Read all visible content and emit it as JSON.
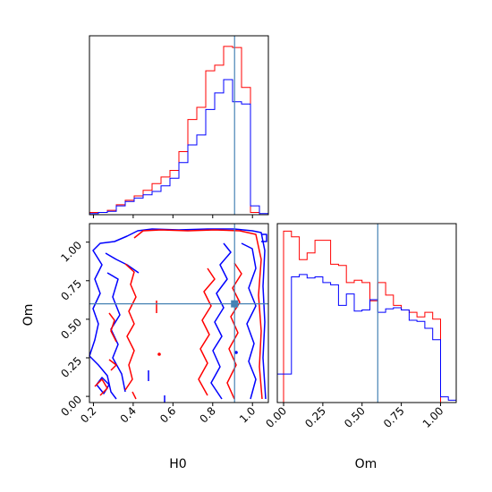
{
  "chart_data": {
    "type": "corner",
    "parameters": [
      "H0",
      "Om"
    ],
    "truth": {
      "H0": 0.91,
      "Om": 0.6
    },
    "colors": {
      "red": "#ff0000",
      "blue": "#0000ff",
      "truth": "#4682b4"
    },
    "panels": {
      "h0_hist": {
        "type": "step-histogram",
        "xlim": [
          0.18,
          1.08
        ],
        "bin_edges": [
          0.18,
          0.225,
          0.27,
          0.315,
          0.36,
          0.405,
          0.45,
          0.495,
          0.54,
          0.585,
          0.63,
          0.675,
          0.72,
          0.765,
          0.81,
          0.855,
          0.9,
          0.945,
          0.99,
          1.035,
          1.08
        ],
        "series": [
          {
            "color": "red",
            "counts": [
              2,
              2,
              4,
              9,
              13,
              17,
              22,
              28,
              34,
              40,
              57,
              86,
              97,
              130,
              135,
              152,
              151,
              115,
              2,
              0
            ]
          },
          {
            "color": "blue",
            "counts": [
              1,
              2,
              3,
              8,
              12,
              15,
              18,
              21,
              26,
              33,
              47,
              63,
              72,
              95,
              110,
              122,
              102,
              100,
              8,
              1
            ]
          }
        ]
      },
      "om_hist": {
        "type": "step-histogram",
        "xlim": [
          -0.04,
          1.1
        ],
        "xticks": [
          "0.00",
          "0.25",
          "0.50",
          "0.75",
          "1.00"
        ],
        "xlabel": "Om",
        "bin_edges": [
          -0.04,
          0.0,
          0.05,
          0.1,
          0.15,
          0.2,
          0.25,
          0.3,
          0.35,
          0.4,
          0.45,
          0.5,
          0.55,
          0.6,
          0.65,
          0.7,
          0.75,
          0.8,
          0.85,
          0.9,
          0.95,
          1.0,
          1.05,
          1.1
        ],
        "series": [
          {
            "color": "red",
            "counts": [
              0,
              150,
              145,
              125,
              131,
              142,
              142,
              121,
              120,
              105,
              107,
              105,
              89,
              105,
              94,
              85,
              81,
              79,
              75,
              79,
              73,
              0,
              0
            ]
          },
          {
            "color": "blue",
            "counts": [
              25,
              25,
              110,
              112,
              109,
              110,
              105,
              103,
              85,
              95,
              80,
              81,
              90,
              79,
              82,
              83,
              81,
              72,
              71,
              65,
              55,
              5,
              2
            ]
          }
        ]
      },
      "joint": {
        "type": "contour",
        "xlim": [
          0.18,
          1.08
        ],
        "ylim": [
          -0.04,
          1.12
        ],
        "xticks": [
          "0.2",
          "0.4",
          "0.6",
          "0.8",
          "1.0"
        ],
        "yticks": [
          "0.00",
          "0.25",
          "0.50",
          "0.75",
          "1.00"
        ],
        "xlabel": "H0",
        "ylabel": "Om"
      }
    }
  }
}
